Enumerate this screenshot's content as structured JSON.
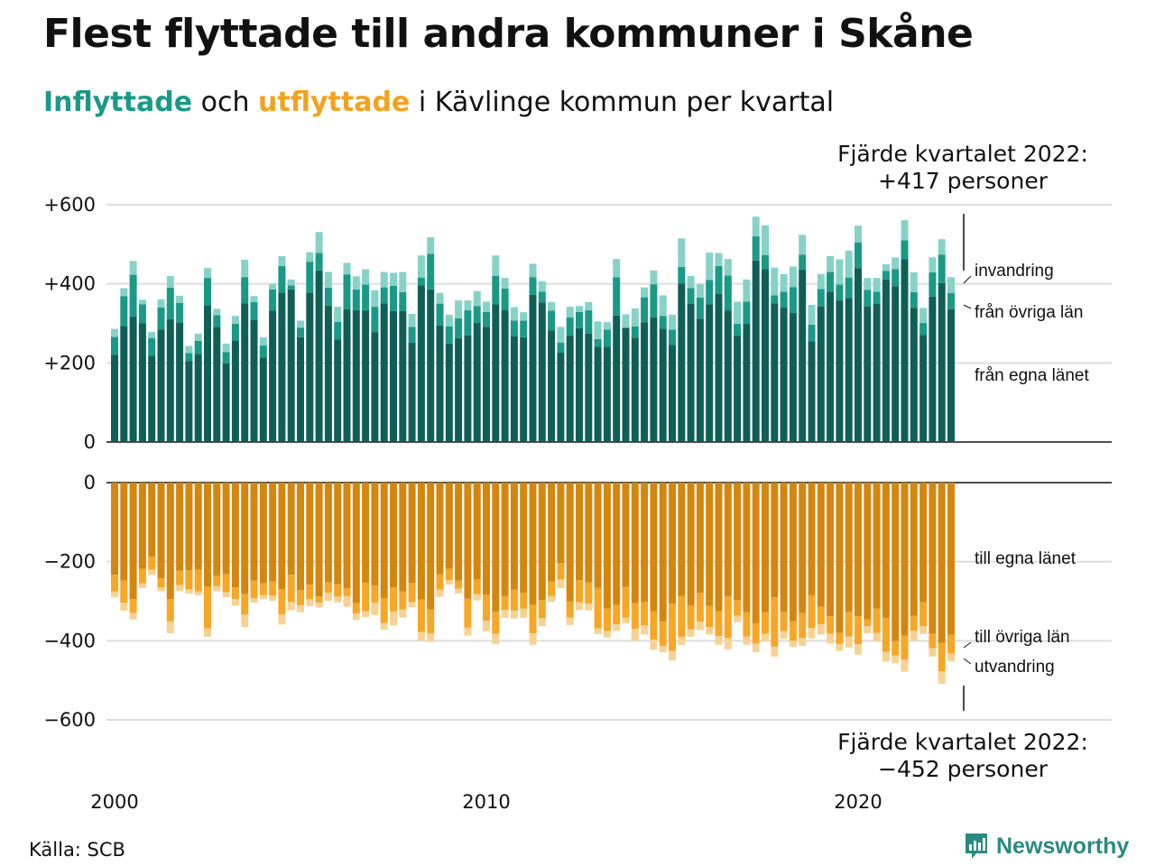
{
  "title": "Flest flyttade till andra kommuner i Skåne",
  "subtitle": {
    "in_word": "Inflyttade",
    "connector": "och",
    "out_word": "utflyttade",
    "rest": "i Kävlinge kommun per kvartal"
  },
  "annotation_top": {
    "line1": "Fjärde kvartalet 2022:",
    "line2": "+417 personer"
  },
  "annotation_bottom": {
    "line1": "Fjärde kvartalet 2022:",
    "line2": "−452 personer"
  },
  "source": "Källa: SCB",
  "brand": {
    "name": "Newsworthy",
    "icon": "newsworthy-logo-icon"
  },
  "colors": {
    "in_own": "#105f56",
    "in_other": "#1a9986",
    "in_immig": "#87d2c7",
    "out_own": "#d4860e",
    "out_other": "#f8a626",
    "out_emig": "#f8d294",
    "grid": "#dddddd"
  },
  "chart_data": {
    "type": "bar",
    "stacked": true,
    "period": "quarter",
    "first_quarter": "2000 Q1",
    "x_tick_labels": [
      "2000",
      "2010",
      "2020"
    ],
    "in_panel": {
      "y_tick_labels": [
        "+600",
        "+400",
        "+200",
        "0"
      ],
      "ylim": [
        0,
        600
      ],
      "series": [
        {
          "name": "från egna länet",
          "values": [
            220,
            293,
            317,
            300,
            218,
            284,
            311,
            302,
            205,
            223,
            346,
            291,
            199,
            257,
            351,
            308,
            214,
            332,
            378,
            386,
            265,
            378,
            434,
            345,
            259,
            336,
            333,
            332,
            278,
            351,
            331,
            331,
            251,
            396,
            386,
            295,
            249,
            263,
            270,
            301,
            291,
            348,
            334,
            267,
            265,
            372,
            353,
            282,
            226,
            269,
            288,
            274,
            241,
            241,
            320,
            289,
            264,
            303,
            315,
            287,
            246,
            401,
            349,
            312,
            348,
            375,
            332,
            269,
            299,
            459,
            437,
            351,
            340,
            327,
            436,
            255,
            343,
            380,
            358,
            364,
            440,
            343,
            350,
            411,
            394,
            462,
            339,
            271,
            368,
            402,
            336
          ],
          "bar_labels": []
        },
        {
          "name": "från övriga län",
          "values": [
            46,
            76,
            106,
            48,
            45,
            56,
            79,
            50,
            20,
            33,
            69,
            30,
            28,
            42,
            66,
            46,
            30,
            54,
            67,
            10,
            24,
            78,
            44,
            45,
            45,
            88,
            53,
            66,
            64,
            40,
            64,
            48,
            40,
            20,
            90,
            55,
            43,
            50,
            63,
            43,
            38,
            72,
            54,
            40,
            42,
            45,
            27,
            50,
            25,
            46,
            41,
            59,
            19,
            43,
            97,
            0,
            28,
            63,
            84,
            32,
            38,
            42,
            40,
            53,
            62,
            70,
            89,
            30,
            56,
            61,
            36,
            20,
            40,
            65,
            38,
            42,
            44,
            50,
            40,
            52,
            65,
            42,
            30,
            22,
            43,
            48,
            40,
            30,
            61,
            72,
            41
          ],
          "bar_labels": []
        },
        {
          "name": "invandring",
          "values": [
            20,
            20,
            35,
            12,
            15,
            21,
            30,
            18,
            18,
            18,
            25,
            16,
            22,
            20,
            44,
            15,
            21,
            14,
            25,
            15,
            18,
            24,
            53,
            40,
            38,
            29,
            33,
            39,
            42,
            39,
            33,
            51,
            33,
            56,
            42,
            27,
            30,
            45,
            25,
            38,
            26,
            52,
            27,
            34,
            21,
            34,
            27,
            22,
            40,
            27,
            15,
            21,
            45,
            19,
            46,
            34,
            46,
            25,
            35,
            52,
            38,
            72,
            31,
            34,
            69,
            33,
            42,
            56,
            56,
            50,
            75,
            70,
            45,
            52,
            50,
            50,
            38,
            40,
            64,
            68,
            42,
            30,
            35,
            17,
            30,
            51,
            50,
            38,
            38,
            39,
            40
          ],
          "bar_labels": []
        }
      ]
    },
    "out_panel": {
      "y_tick_labels": [
        "0",
        "−200",
        "−400",
        "−600"
      ],
      "ylim": [
        -600,
        0
      ],
      "series": [
        {
          "name": "till egna länet",
          "values": [
            -233,
            -248,
            -295,
            -218,
            -187,
            -242,
            -295,
            -223,
            -222,
            -220,
            -263,
            -235,
            -232,
            -265,
            -282,
            -248,
            -255,
            -250,
            -270,
            -233,
            -272,
            -258,
            -288,
            -252,
            -257,
            -267,
            -305,
            -253,
            -260,
            -292,
            -265,
            -275,
            -254,
            -296,
            -321,
            -232,
            -218,
            -248,
            -294,
            -245,
            -283,
            -327,
            -287,
            -271,
            -279,
            -309,
            -297,
            -250,
            -203,
            -300,
            -247,
            -252,
            -266,
            -319,
            -310,
            -264,
            -305,
            -302,
            -326,
            -352,
            -306,
            -287,
            -311,
            -279,
            -312,
            -325,
            -288,
            -297,
            -328,
            -356,
            -328,
            -290,
            -327,
            -351,
            -330,
            -285,
            -314,
            -338,
            -380,
            -327,
            -338,
            -346,
            -319,
            -342,
            -401,
            -387,
            -337,
            -303,
            -382,
            -405,
            -385
          ],
          "bar_labels": []
        },
        {
          "name": "till övriga län",
          "values": [
            -42,
            -56,
            -35,
            -37,
            -33,
            -23,
            -56,
            -36,
            -48,
            -55,
            -106,
            -27,
            -45,
            -30,
            -52,
            -44,
            -29,
            -36,
            -63,
            -69,
            -38,
            -37,
            -16,
            -27,
            -32,
            -20,
            -26,
            -72,
            -44,
            -63,
            -61,
            -46,
            -48,
            -82,
            -60,
            -39,
            -29,
            -20,
            -73,
            -37,
            -66,
            -55,
            -35,
            -53,
            -40,
            -72,
            -46,
            -37,
            -42,
            -41,
            -56,
            -54,
            -103,
            -56,
            -48,
            -77,
            -65,
            -59,
            -71,
            -61,
            -120,
            -103,
            -60,
            -73,
            -53,
            -63,
            -105,
            -40,
            -61,
            -51,
            -54,
            -125,
            -49,
            -49,
            -63,
            -83,
            -44,
            -43,
            -28,
            -62,
            -71,
            -17,
            -61,
            -86,
            -36,
            -61,
            -38,
            -60,
            -37,
            -72,
            -47
          ],
          "bar_labels": []
        },
        {
          "name": "utvandring",
          "values": [
            -15,
            -20,
            -16,
            -12,
            -14,
            -10,
            -30,
            -15,
            -11,
            -10,
            -21,
            -13,
            -13,
            -16,
            -31,
            -12,
            -11,
            -13,
            -26,
            -21,
            -18,
            -17,
            -12,
            -20,
            -14,
            -27,
            -16,
            -15,
            -31,
            -17,
            -35,
            -21,
            -13,
            -21,
            -22,
            -18,
            -11,
            -13,
            -20,
            -16,
            -27,
            -26,
            -20,
            -20,
            -23,
            -29,
            -20,
            -15,
            -22,
            -19,
            -19,
            -17,
            -14,
            -17,
            -17,
            -15,
            -30,
            -23,
            -26,
            -16,
            -24,
            -21,
            -19,
            -21,
            -19,
            -22,
            -29,
            -16,
            -21,
            -22,
            -19,
            -25,
            -19,
            -15,
            -20,
            -26,
            -26,
            -26,
            -18,
            -28,
            -26,
            -18,
            -21,
            -25,
            -20,
            -30,
            -25,
            -20,
            -21,
            -32,
            -20
          ],
          "bar_labels": []
        }
      ]
    },
    "labels_in": [
      "invandring",
      "från övriga län",
      "från egna länet"
    ],
    "labels_out": [
      "till egna länet",
      "till övriga län",
      "utvandring"
    ],
    "grid": true
  }
}
